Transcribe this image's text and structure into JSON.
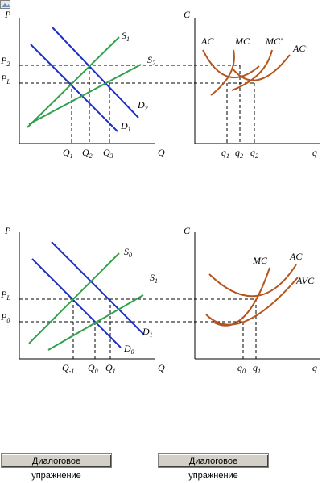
{
  "colors": {
    "demand": "#1c2fc4",
    "supply": "#2fa14a",
    "cost": "#b5541c",
    "axis": "#000000",
    "dashed": "#000000"
  },
  "top": {
    "market": {
      "y_axis": "P",
      "x_axis": "Q",
      "prices": [
        {
          "base": "P",
          "sub": "2"
        },
        {
          "base": "P",
          "sub": "L"
        }
      ],
      "quantities": [
        {
          "base": "Q",
          "sub": "1"
        },
        {
          "base": "Q",
          "sub": "2"
        },
        {
          "base": "Q",
          "sub": "3"
        }
      ],
      "curves": [
        {
          "base": "S",
          "sub": "1"
        },
        {
          "base": "S",
          "sub": "2"
        },
        {
          "base": "D",
          "sub": "2"
        },
        {
          "base": "D",
          "sub": "1"
        }
      ]
    },
    "firm": {
      "y_axis": "C",
      "x_axis": "q",
      "quantities": [
        {
          "base": "q",
          "sub": "1"
        },
        {
          "base": "q",
          "sub": "2"
        },
        {
          "base": "q",
          "sub": "2"
        }
      ],
      "curves": [
        "AC",
        "MC",
        "MC'",
        "AC'"
      ]
    }
  },
  "bottom": {
    "market": {
      "y_axis": "P",
      "x_axis": "Q",
      "prices": [
        {
          "base": "P",
          "sub": "L"
        },
        {
          "base": "P",
          "sub": "0"
        }
      ],
      "quantities": [
        {
          "base": "Q",
          "sub": "-1"
        },
        {
          "base": "Q",
          "sub": "0"
        },
        {
          "base": "Q",
          "sub": "1"
        }
      ],
      "curves": [
        {
          "base": "S",
          "sub": "0"
        },
        {
          "base": "S",
          "sub": "1"
        },
        {
          "base": "D",
          "sub": "1"
        },
        {
          "base": "D",
          "sub": "0"
        }
      ]
    },
    "firm": {
      "y_axis": "C",
      "x_axis": "q",
      "quantities": [
        {
          "base": "q",
          "sub": "0"
        },
        {
          "base": "q",
          "sub": "1"
        }
      ],
      "curves": [
        "MC",
        "AC",
        "AVC"
      ]
    }
  },
  "buttons": [
    "Диалоговое упражнение",
    "Диалоговое упражнение"
  ],
  "icons": {
    "corner": "broken-image-icon"
  }
}
